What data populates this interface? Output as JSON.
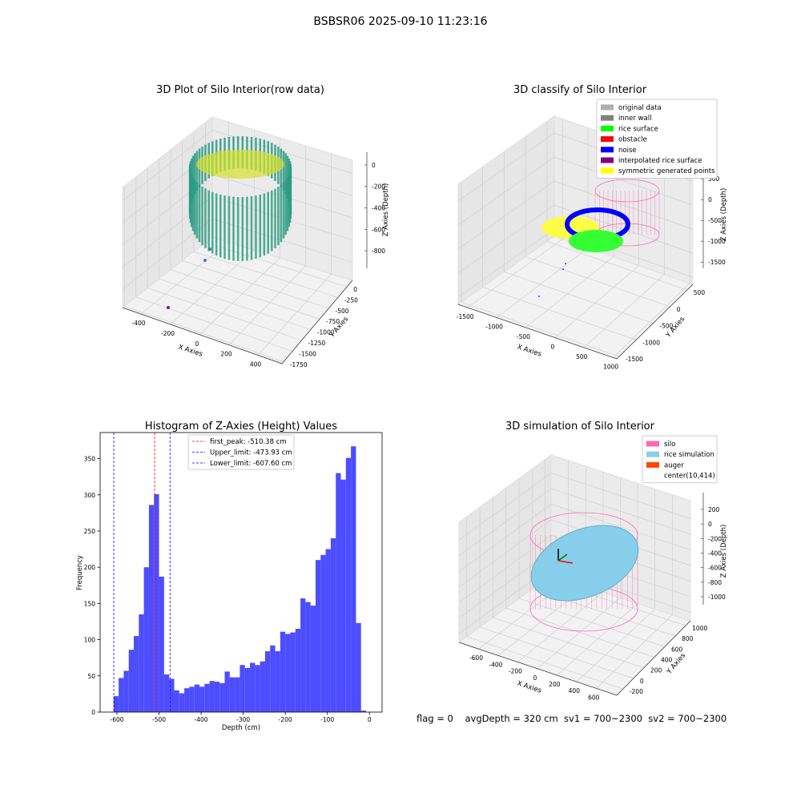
{
  "title": "BSBSR06 2025-09-10 11:23:16",
  "status": "flag = 0    avgDepth = 320 cm  sv1 = 700~2300  sv2 = 700~2300",
  "chart_data": [
    {
      "type": "scatter3d",
      "title": "3D Plot of Silo Interior(row data)",
      "x_label": "X Axies",
      "y_label": "Y Axies",
      "z_label": "Z Axies (Depth)",
      "xlim": [
        -526,
        564
      ],
      "xticks": [
        -400,
        -200,
        0,
        200,
        400
      ],
      "ylim": [
        -1790,
        150
      ],
      "yticks": [
        0,
        -250,
        -500,
        -750,
        -1000,
        -1250,
        -1500,
        -1750
      ],
      "zlim": [
        -964,
        119
      ],
      "zticks": [
        0,
        -200,
        -400,
        -600,
        -800
      ]
    },
    {
      "type": "scatter3d",
      "title": "3D classify of Silo Interior",
      "x_label": "X Axies",
      "y_label": "Y Axies",
      "z_label": "Z Axies (Depth)",
      "xlim": [
        -1660,
        1060
      ],
      "xticks": [
        -1500,
        -1000,
        -500,
        0,
        500,
        1000
      ],
      "ylim": [
        -1570,
        670
      ],
      "yticks": [
        500,
        0,
        -500,
        -1000,
        -1500
      ],
      "zlim": [
        -1650,
        850
      ],
      "zticks": [
        500,
        0,
        -500,
        -1000,
        -1500
      ],
      "legend": [
        {
          "name": "original data",
          "color": "#b0b0b0"
        },
        {
          "name": "inner wall",
          "color": "#808080"
        },
        {
          "name": "rice surface",
          "color": "#00ff00"
        },
        {
          "name": "obstacle",
          "color": "#ff0000"
        },
        {
          "name": "noise",
          "color": "#0000ff"
        },
        {
          "name": "interpolated rice surface",
          "color": "#800080"
        },
        {
          "name": "symmetric generated points",
          "color": "#ffff00"
        }
      ]
    },
    {
      "type": "histogram",
      "title": "Histogram of Z-Axies (Height) Values",
      "x_label": "Depth (cm)",
      "y_label": "Frequency",
      "color": "#4d4dff",
      "bins": [
        -608,
        -596,
        -584,
        -572,
        -560,
        -548,
        -536,
        -524,
        -512,
        -500,
        -488,
        -476,
        -464,
        -452,
        -440,
        -428,
        -416,
        -404,
        -392,
        -380,
        -368,
        -356,
        -344,
        -332,
        -320,
        -308,
        -296,
        -284,
        -272,
        -260,
        -248,
        -236,
        -224,
        -212,
        -200,
        -188,
        -176,
        -164,
        -152,
        -140,
        -128,
        -116,
        -104,
        -92,
        -80,
        -68,
        -56,
        -44,
        -32,
        -20,
        -8
      ],
      "values": [
        22,
        47,
        57,
        86,
        105,
        135,
        200,
        286,
        301,
        187,
        52,
        46,
        30,
        26,
        33,
        35,
        38,
        35,
        39,
        43,
        42,
        40,
        56,
        48,
        48,
        65,
        61,
        68,
        65,
        70,
        84,
        92,
        84,
        111,
        108,
        110,
        115,
        157,
        152,
        147,
        210,
        217,
        225,
        240,
        330,
        321,
        351,
        367,
        123,
        2
      ],
      "xlim": [
        -640,
        30
      ],
      "xticks": [
        -600,
        -500,
        -400,
        -300,
        -200,
        -100,
        0
      ],
      "ylim": [
        0,
        386
      ],
      "yticks": [
        0,
        50,
        100,
        150,
        200,
        250,
        300,
        350
      ],
      "lines": [
        {
          "name": "first_peak: -510.38 cm",
          "value": -510.38,
          "color": "#ff0000"
        },
        {
          "name": "Upper_limit: -473.93 cm",
          "value": -473.93,
          "color": "#0000ff"
        },
        {
          "name": "Lower_limit: -607.60 cm",
          "value": -607.6,
          "color": "#0000ff"
        }
      ]
    },
    {
      "type": "scatter3d",
      "title": "3D simulation of Silo Interior",
      "x_label": "X Axies",
      "y_label": "Y Axies",
      "z_label": "Z Axies (Depth)",
      "xlim": [
        -800,
        810
      ],
      "xticks": [
        -600,
        -400,
        -200,
        0,
        200,
        400,
        600
      ],
      "ylim": [
        -320,
        1090
      ],
      "yticks": [
        -200,
        0,
        200,
        400,
        600,
        800,
        1000
      ],
      "zlim": [
        -1110,
        431
      ],
      "zticks": [
        200,
        0,
        -200,
        -400,
        -600,
        -800,
        -1000
      ],
      "legend": [
        {
          "name": "silo",
          "color": "#ff69b4"
        },
        {
          "name": "rice simulation",
          "color": "#87ceeb"
        },
        {
          "name": "auger",
          "color": "#ff4500"
        },
        {
          "name": "center(10,414)",
          "color": "#ffffff"
        }
      ]
    }
  ]
}
